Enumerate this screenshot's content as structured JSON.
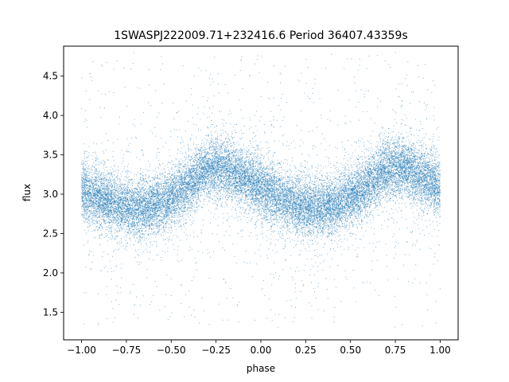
{
  "chart_data": {
    "type": "scatter",
    "title": "1SWASPJ222009.71+232416.6 Period 36407.43359s",
    "xlabel": "phase",
    "ylabel": "flux",
    "xlim": [
      -1.1,
      1.1
    ],
    "ylim": [
      1.15,
      4.88
    ],
    "grid": false,
    "marker_color": "#1f77b4",
    "x_ticks": [
      -1.0,
      -0.75,
      -0.5,
      -0.25,
      0.0,
      0.25,
      0.5,
      0.75,
      1.0
    ],
    "x_tick_labels": [
      "−1.00",
      "−0.75",
      "−0.50",
      "−0.25",
      "0.00",
      "0.25",
      "0.50",
      "0.75",
      "1.00"
    ],
    "y_ticks": [
      1.5,
      2.0,
      2.5,
      3.0,
      3.5,
      4.0,
      4.5
    ],
    "y_tick_labels": [
      "1.5",
      "2.0",
      "2.5",
      "3.0",
      "3.5",
      "4.0",
      "4.5"
    ],
    "x": [
      -1.0,
      -0.9,
      -0.8,
      -0.7,
      -0.6,
      -0.5,
      -0.4,
      -0.3,
      -0.2,
      -0.1,
      0.0,
      0.1,
      0.2,
      0.3,
      0.4,
      0.5,
      0.6,
      0.7,
      0.8,
      0.9,
      1.0
    ],
    "y": [
      3.05,
      2.95,
      2.86,
      2.82,
      2.85,
      2.95,
      3.12,
      3.32,
      3.33,
      3.22,
      3.08,
      2.95,
      2.86,
      2.82,
      2.85,
      2.95,
      3.12,
      3.32,
      3.33,
      3.22,
      3.08
    ],
    "core_spread": 0.18,
    "outlier_range": [
      1.3,
      4.8
    ]
  }
}
